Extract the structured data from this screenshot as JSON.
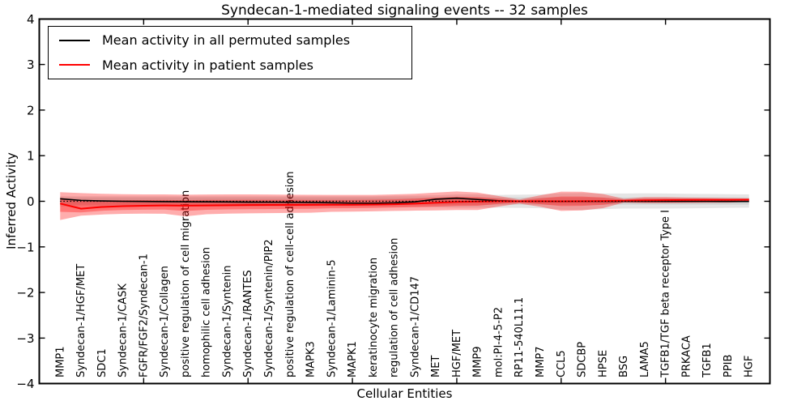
{
  "title": "Syndecan-1-mediated signaling events -- 32 samples",
  "legend": {
    "items": [
      {
        "label": "Mean activity in all permuted samples",
        "color": "#000000"
      },
      {
        "label": "Mean activity in patient samples",
        "color": "#ff0000"
      }
    ]
  },
  "chart_data": {
    "type": "line",
    "title": "Syndecan-1-mediated signaling events -- 32 samples",
    "xlabel": "Cellular Entities",
    "ylabel": "Inferred Activity",
    "ylim": [
      -4,
      4
    ],
    "xlim": [
      0,
      35
    ],
    "yticks": [
      "4",
      "3",
      "2",
      "1",
      "0",
      "−1",
      "−2",
      "−3",
      "−4"
    ],
    "ytick_values": [
      4,
      3,
      2,
      1,
      0,
      -1,
      -2,
      -3,
      -4
    ],
    "xtick_values": [
      5,
      10,
      15,
      20,
      25,
      30
    ],
    "grid": false,
    "legend_position": "upper left",
    "zero_reference_line": {
      "style": "dotted",
      "color": "#000000",
      "y": 0
    },
    "colors": {
      "permuted_line": "#000000",
      "patient_line": "#ff0000",
      "patient_band_fill": "rgba(255,0,0,0.32)",
      "permuted_band_fill": "rgba(0,0,0,0.10)",
      "permuted_band_inner_fill": "rgba(0,0,0,0.08)"
    },
    "categories": [
      "MMP1",
      "Syndecan-1/HGF/MET",
      "SDC1",
      "Syndecan-1/CASK",
      "FGFR/FGF2/Syndecan-1",
      "Syndecan-1/Collagen",
      "positive regulation of cell migration",
      "homophilic cell adhesion",
      "Syndecan-1/Syntenin",
      "Syndecan-1/RANTES",
      "Syndecan-1/Syntenin/PIP2",
      "positive regulation of cell-cell adhesion",
      "MAPK3",
      "Syndecan-1/Laminin-5",
      "MAPK1",
      "keratinocyte migration",
      "regulation of cell adhesion",
      "Syndecan-1/CD147",
      "MET",
      "HGF/MET",
      "MMP9",
      "mol:PI-4-5-P2",
      "RP11-540L11.1",
      "MMP7",
      "CCL5",
      "SDCBP",
      "HPSE",
      "BSG",
      "LAMA5",
      "TGFB1/TGF beta receptor Type I",
      "PRKACA",
      "TGFB1",
      "PPIB",
      "HGF"
    ],
    "series": [
      {
        "name": "Mean activity in all permuted samples",
        "values": [
          0.055,
          0.02,
          0.008,
          0.0,
          -0.004,
          -0.008,
          -0.01,
          -0.013,
          -0.015,
          -0.018,
          -0.02,
          -0.022,
          -0.026,
          -0.032,
          -0.04,
          -0.042,
          -0.035,
          -0.012,
          0.045,
          0.068,
          0.04,
          0.012,
          0.0,
          -0.004,
          -0.006,
          -0.004,
          -0.002,
          -0.001,
          -0.001,
          -0.001,
          -0.002,
          -0.002,
          -0.003,
          -0.003
        ]
      },
      {
        "name": "Mean activity in patient samples",
        "values": [
          -0.05,
          -0.162,
          -0.125,
          -0.107,
          -0.098,
          -0.092,
          -0.096,
          -0.09,
          -0.086,
          -0.082,
          -0.08,
          -0.079,
          -0.078,
          -0.076,
          -0.075,
          -0.071,
          -0.065,
          -0.052,
          -0.032,
          -0.014,
          -0.006,
          -0.001,
          0.0,
          0.002,
          0.0,
          0.002,
          0.007,
          0.014,
          0.02,
          0.025,
          0.028,
          0.03,
          0.032,
          0.035
        ]
      }
    ],
    "bands": {
      "patient_outer_top": [
        0.2,
        0.18,
        0.165,
        0.155,
        0.15,
        0.15,
        0.145,
        0.149,
        0.15,
        0.15,
        0.148,
        0.145,
        0.142,
        0.14,
        0.139,
        0.14,
        0.15,
        0.165,
        0.19,
        0.215,
        0.19,
        0.115,
        0.04,
        0.13,
        0.21,
        0.208,
        0.16,
        0.055,
        0.09,
        0.09,
        0.082,
        0.078,
        0.072,
        0.065
      ],
      "patient_outer_bottom": [
        -0.41,
        -0.315,
        -0.29,
        -0.275,
        -0.27,
        -0.272,
        -0.33,
        -0.285,
        -0.27,
        -0.265,
        -0.26,
        -0.255,
        -0.25,
        -0.232,
        -0.226,
        -0.22,
        -0.21,
        -0.205,
        -0.2,
        -0.19,
        -0.19,
        -0.115,
        -0.05,
        -0.12,
        -0.21,
        -0.2,
        -0.15,
        -0.03,
        -0.042,
        -0.042,
        -0.038,
        -0.034,
        -0.03,
        -0.012
      ],
      "patient_inner_top": [
        0.075,
        0.01,
        0.02,
        0.024,
        0.026,
        0.029,
        0.025,
        0.03,
        0.032,
        0.034,
        0.034,
        0.033,
        0.032,
        0.032,
        0.032,
        0.035,
        0.043,
        0.057,
        0.079,
        0.1,
        0.092,
        0.057,
        0.02,
        0.066,
        0.105,
        0.105,
        0.083,
        0.034,
        0.055,
        0.057,
        0.055,
        0.054,
        0.052,
        0.05
      ],
      "patient_inner_bottom": [
        -0.23,
        -0.245,
        -0.208,
        -0.19,
        -0.184,
        -0.182,
        -0.213,
        -0.187,
        -0.178,
        -0.173,
        -0.17,
        -0.167,
        -0.164,
        -0.154,
        -0.15,
        -0.146,
        -0.138,
        -0.128,
        -0.116,
        -0.102,
        -0.098,
        -0.058,
        -0.025,
        -0.062,
        -0.105,
        -0.1,
        -0.076,
        -0.016,
        -0.021,
        -0.021,
        -0.019,
        -0.017,
        -0.015,
        -0.006
      ],
      "permuted_outer_top": [
        0.11,
        0.11,
        0.11,
        0.11,
        0.11,
        0.11,
        0.11,
        0.11,
        0.11,
        0.11,
        0.11,
        0.11,
        0.11,
        0.11,
        0.11,
        0.11,
        0.12,
        0.125,
        0.13,
        0.15,
        0.15,
        0.14,
        0.145,
        0.15,
        0.175,
        0.18,
        0.17,
        0.17,
        0.175,
        0.17,
        0.165,
        0.16,
        0.155,
        0.15
      ],
      "permuted_outer_bottom": [
        -0.11,
        -0.11,
        -0.11,
        -0.11,
        -0.11,
        -0.11,
        -0.11,
        -0.11,
        -0.11,
        -0.11,
        -0.11,
        -0.11,
        -0.11,
        -0.11,
        -0.11,
        -0.11,
        -0.12,
        -0.125,
        -0.13,
        -0.14,
        -0.14,
        -0.14,
        -0.145,
        -0.15,
        -0.185,
        -0.19,
        -0.17,
        -0.16,
        -0.16,
        -0.16,
        -0.155,
        -0.15,
        -0.145,
        -0.14
      ],
      "permuted_inner_top": [
        0.085,
        0.085,
        0.085,
        0.085,
        0.085,
        0.085,
        0.085,
        0.085,
        0.085,
        0.085,
        0.085,
        0.085,
        0.085,
        0.085,
        0.085,
        0.085,
        0.085,
        0.085,
        0.085,
        0.085,
        0.085,
        0.085,
        0.085,
        0.085,
        0.085,
        0.085,
        0.085,
        0.085,
        0.085,
        0.085,
        0.085,
        0.085,
        0.085,
        0.085
      ],
      "permuted_inner_bottom": [
        -0.075,
        -0.075,
        -0.075,
        -0.075,
        -0.075,
        -0.075,
        -0.075,
        -0.075,
        -0.075,
        -0.075,
        -0.075,
        -0.075,
        -0.075,
        -0.075,
        -0.075,
        -0.075,
        -0.075,
        -0.075,
        -0.075,
        -0.075,
        -0.075,
        -0.075,
        -0.075,
        -0.075,
        -0.075,
        -0.075,
        -0.075,
        -0.075,
        -0.075,
        -0.075,
        -0.075,
        -0.075,
        -0.075,
        -0.075
      ]
    }
  }
}
